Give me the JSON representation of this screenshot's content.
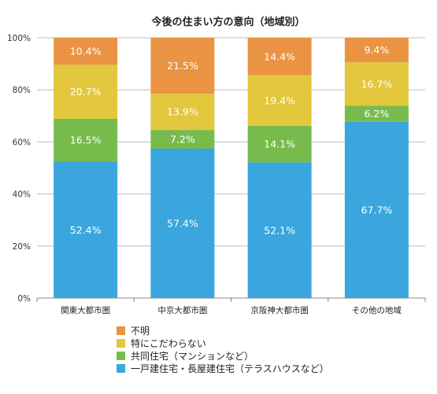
{
  "chart_data": {
    "type": "bar",
    "stacked": true,
    "title": "今後の住まい方の意向（地域別）",
    "categories": [
      "関東大都市圏",
      "中京大都市圏",
      "京阪神大都市圏",
      "その他の地域"
    ],
    "ylim": [
      0,
      100
    ],
    "yticks": [
      "0%",
      "20%",
      "40%",
      "60%",
      "80%",
      "100%"
    ],
    "grid": true,
    "legend_position": "bottom",
    "series": [
      {
        "name": "一戸建住宅・長屋建住宅（テラスハウスなど）",
        "color": "#3aa6dd",
        "values": [
          52.4,
          57.4,
          52.1,
          67.7
        ],
        "labels": [
          "52.4%",
          "57.4%",
          "52.1%",
          "67.7%"
        ]
      },
      {
        "name": "共同住宅（マンションなど）",
        "color": "#78bb4d",
        "values": [
          16.5,
          7.2,
          14.1,
          6.2
        ],
        "labels": [
          "16.5%",
          "7.2%",
          "14.1%",
          "6.2%"
        ]
      },
      {
        "name": "特にこだわらない",
        "color": "#e3c73c",
        "values": [
          20.7,
          13.9,
          19.4,
          16.7
        ],
        "labels": [
          "20.7%",
          "13.9%",
          "19.4%",
          "16.7%"
        ]
      },
      {
        "name": "不明",
        "color": "#ea9443",
        "values": [
          10.4,
          21.5,
          14.4,
          9.4
        ],
        "labels": [
          "10.4%",
          "21.5%",
          "14.4%",
          "9.4%"
        ]
      }
    ],
    "legend_order": [
      "不明",
      "特にこだわらない",
      "共同住宅（マンションなど）",
      "一戸建住宅・長屋建住宅（テラスハウスなど）"
    ]
  }
}
